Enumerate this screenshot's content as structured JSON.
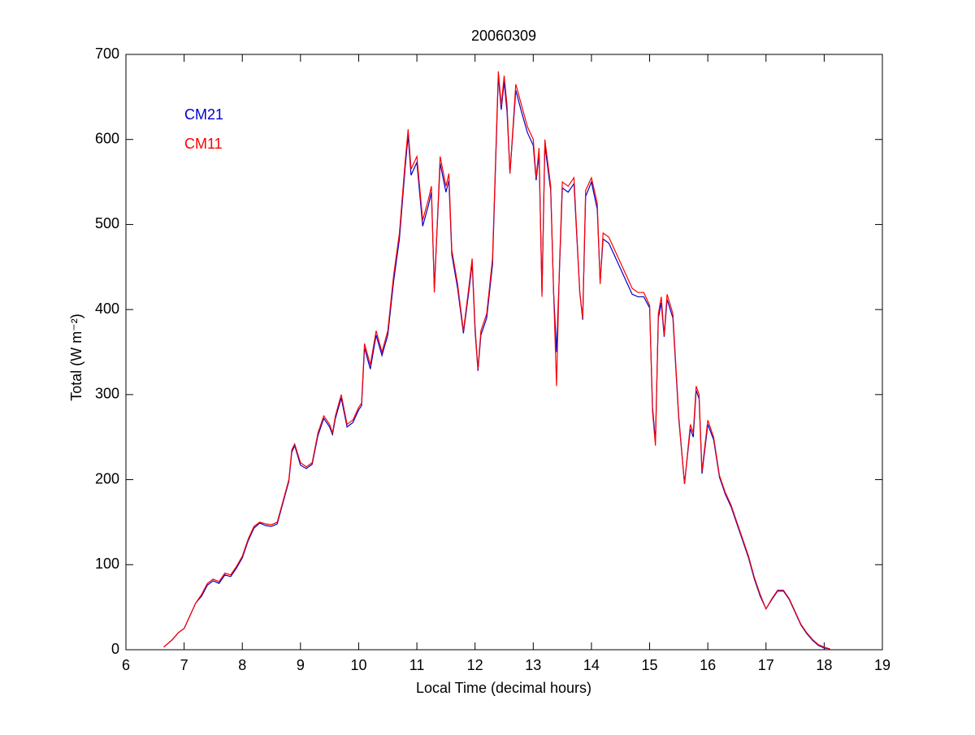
{
  "chart_data": {
    "type": "line",
    "title": "20060309",
    "xlabel": "Local Time (decimal hours)",
    "ylabel": "Total (W m⁻²)",
    "xlim": [
      6,
      19
    ],
    "ylim": [
      0,
      700
    ],
    "xticks": [
      6,
      7,
      8,
      9,
      10,
      11,
      12,
      13,
      14,
      15,
      16,
      17,
      18,
      19
    ],
    "yticks": [
      0,
      100,
      200,
      300,
      400,
      500,
      600,
      700
    ],
    "legend": "upper left",
    "grid": false,
    "x": [
      6.65,
      6.8,
      6.9,
      7.0,
      7.1,
      7.2,
      7.3,
      7.4,
      7.5,
      7.6,
      7.7,
      7.8,
      7.9,
      8.0,
      8.1,
      8.2,
      8.3,
      8.4,
      8.5,
      8.6,
      8.7,
      8.8,
      8.85,
      8.9,
      9.0,
      9.1,
      9.2,
      9.3,
      9.4,
      9.5,
      9.55,
      9.6,
      9.7,
      9.8,
      9.9,
      10.0,
      10.05,
      10.1,
      10.2,
      10.3,
      10.4,
      10.5,
      10.6,
      10.7,
      10.8,
      10.85,
      10.9,
      11.0,
      11.1,
      11.2,
      11.25,
      11.3,
      11.4,
      11.5,
      11.55,
      11.6,
      11.7,
      11.8,
      11.9,
      11.95,
      12.0,
      12.05,
      12.1,
      12.2,
      12.3,
      12.4,
      12.45,
      12.5,
      12.55,
      12.6,
      12.7,
      12.8,
      12.9,
      13.0,
      13.05,
      13.1,
      13.15,
      13.2,
      13.3,
      13.35,
      13.4,
      13.45,
      13.5,
      13.6,
      13.7,
      13.8,
      13.85,
      13.9,
      14.0,
      14.1,
      14.15,
      14.2,
      14.3,
      14.4,
      14.5,
      14.6,
      14.7,
      14.8,
      14.9,
      15.0,
      15.05,
      15.1,
      15.15,
      15.2,
      15.25,
      15.3,
      15.4,
      15.5,
      15.6,
      15.65,
      15.7,
      15.75,
      15.8,
      15.85,
      15.9,
      16.0,
      16.1,
      16.2,
      16.3,
      16.4,
      16.5,
      16.6,
      16.7,
      16.8,
      16.9,
      17.0,
      17.1,
      17.2,
      17.3,
      17.4,
      17.5,
      17.6,
      17.7,
      17.8,
      17.9,
      18.0,
      18.1
    ],
    "series": [
      {
        "name": "CM21",
        "color": "#0000cc",
        "values": [
          3,
          12,
          20,
          25,
          40,
          55,
          63,
          76,
          81,
          78,
          88,
          86,
          96,
          108,
          128,
          143,
          149,
          146,
          145,
          148,
          173,
          198,
          232,
          240,
          217,
          213,
          218,
          252,
          272,
          262,
          253,
          272,
          296,
          262,
          267,
          282,
          287,
          355,
          330,
          370,
          346,
          370,
          433,
          483,
          568,
          605,
          558,
          573,
          498,
          523,
          538,
          425,
          572,
          538,
          552,
          465,
          425,
          372,
          425,
          455,
          375,
          328,
          370,
          390,
          453,
          675,
          635,
          668,
          632,
          560,
          658,
          632,
          608,
          593,
          552,
          583,
          420,
          593,
          540,
          420,
          350,
          445,
          543,
          538,
          548,
          420,
          388,
          533,
          550,
          518,
          432,
          483,
          478,
          463,
          448,
          433,
          418,
          415,
          415,
          402,
          285,
          245,
          390,
          408,
          368,
          412,
          390,
          272,
          195,
          228,
          260,
          250,
          305,
          295,
          207,
          265,
          247,
          203,
          183,
          168,
          148,
          128,
          108,
          83,
          63,
          48,
          59,
          69,
          69,
          59,
          44,
          29,
          19,
          11,
          5,
          2,
          1
        ]
      },
      {
        "name": "CM11",
        "color": "#ff0000",
        "values": [
          3,
          12,
          20,
          25,
          40,
          55,
          65,
          78,
          83,
          80,
          90,
          88,
          98,
          110,
          130,
          145,
          150,
          148,
          147,
          150,
          175,
          200,
          235,
          242,
          220,
          215,
          220,
          255,
          275,
          265,
          255,
          275,
          300,
          265,
          270,
          285,
          290,
          360,
          335,
          375,
          350,
          375,
          440,
          490,
          575,
          612,
          565,
          580,
          505,
          530,
          545,
          420,
          580,
          545,
          560,
          470,
          430,
          375,
          430,
          460,
          380,
          330,
          375,
          395,
          460,
          680,
          640,
          675,
          640,
          560,
          665,
          640,
          615,
          600,
          555,
          590,
          415,
          600,
          545,
          420,
          310,
          450,
          550,
          545,
          555,
          420,
          390,
          540,
          555,
          525,
          430,
          490,
          485,
          470,
          455,
          440,
          425,
          420,
          420,
          405,
          280,
          240,
          395,
          415,
          370,
          418,
          395,
          275,
          195,
          230,
          265,
          255,
          310,
          300,
          210,
          270,
          250,
          205,
          185,
          170,
          150,
          130,
          110,
          85,
          65,
          48,
          60,
          70,
          70,
          60,
          45,
          30,
          20,
          12,
          6,
          3,
          1
        ]
      }
    ]
  }
}
